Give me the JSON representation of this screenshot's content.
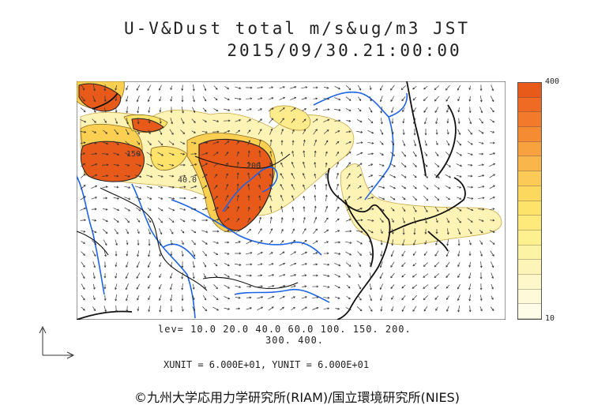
{
  "title": {
    "line1": "U-V&Dust total m/s&ug/m3 JST",
    "line2": "2015/09/30.21:00:00"
  },
  "colorbar": {
    "max_label": "400",
    "min_label": "10",
    "colors": [
      "#e85a1a",
      "#ef6a22",
      "#f27a2a",
      "#f58c34",
      "#f7a13f",
      "#f9b64b",
      "#fbca57",
      "#fcd85f",
      "#fde36a",
      "#fdea7b",
      "#fdf08f",
      "#fdf3a5",
      "#fdf5b8",
      "#fef7c9",
      "#fef9d8",
      "#fefbe6"
    ]
  },
  "contour_levels": {
    "line1": "lev= 10.0 20.0 40.0 60.0 100. 150. 200.",
    "line2": "300. 400."
  },
  "map_labels": {
    "contour_a": "40.0",
    "contour_b": "200",
    "contour_c": "150"
  },
  "units": "XUNIT = 6.000E+01, YUNIT = 6.000E+01",
  "credit": "©九州大学応用力学研究所(RIAM)/国立環境研究所(NIES)",
  "colors": {
    "heavy_dust": "#e85a1a",
    "light_dust": "#fdf3b5",
    "rivers": "#1e64e6",
    "coast": "#111111"
  },
  "icons": [
    "axes-icon",
    "wind-vector-icon"
  ]
}
